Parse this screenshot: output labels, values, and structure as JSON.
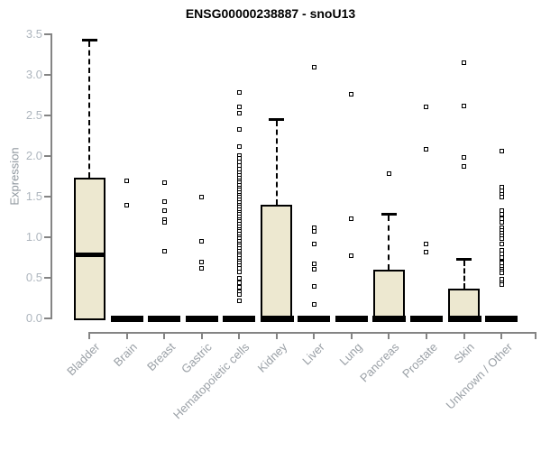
{
  "title": "ENSG00000238887 - snoU13",
  "y_axis": {
    "label": "Expression"
  },
  "colors": {
    "box_fill": "#EDE8D0",
    "box_stroke": "#000000",
    "axis_line": "#848484",
    "y_tick_label": "#AEB6BE",
    "x_tick_label": "#9AA0A6",
    "title": "#000000"
  },
  "chart_data": {
    "type": "boxplot",
    "title": "ENSG00000238887 - snoU13",
    "xlabel": "",
    "ylabel": "Expression",
    "ylim": [
      0,
      3.5
    ],
    "ytick_labels": [
      "0.0",
      "0.5",
      "1.0",
      "1.5",
      "2.0",
      "2.5",
      "3.0",
      "3.5"
    ],
    "grid": false,
    "legend": "none",
    "categories": [
      "Bladder",
      "Brain",
      "Breast",
      "Gastric",
      "Hematopoietic cells",
      "Kidney",
      "Liver",
      "Lung",
      "Pancreas",
      "Prostate",
      "Skin",
      "Unknown / Other"
    ],
    "series": [
      {
        "name": "Bladder",
        "q1": 0,
        "median": 0.79,
        "q3": 1.73,
        "whisker_low": 0,
        "whisker_high": 3.43,
        "outliers": []
      },
      {
        "name": "Brain",
        "q1": 0,
        "median": 0,
        "q3": 0,
        "whisker_low": 0,
        "whisker_high": 0,
        "outliers": [
          1.69,
          1.4
        ]
      },
      {
        "name": "Breast",
        "q1": 0,
        "median": 0,
        "q3": 0,
        "whisker_low": 0,
        "whisker_high": 0,
        "outliers": [
          1.67,
          1.44,
          1.33,
          1.22,
          1.18,
          0.83
        ]
      },
      {
        "name": "Gastric",
        "q1": 0,
        "median": 0,
        "q3": 0,
        "whisker_low": 0,
        "whisker_high": 0,
        "outliers": [
          1.49,
          0.95,
          0.7,
          0.62
        ]
      },
      {
        "name": "Hematopoietic cells",
        "q1": 0,
        "median": 0,
        "q3": 0,
        "whisker_low": 0,
        "whisker_high": 0,
        "outliers": [
          2.78,
          2.61,
          2.53,
          2.33,
          2.12,
          2.01,
          1.97,
          1.93,
          1.88,
          1.84,
          1.8,
          1.76,
          1.73,
          1.7,
          1.67,
          1.64,
          1.61,
          1.58,
          1.55,
          1.52,
          1.49,
          1.46,
          1.43,
          1.4,
          1.37,
          1.34,
          1.31,
          1.28,
          1.25,
          1.22,
          1.19,
          1.16,
          1.13,
          1.1,
          1.07,
          1.04,
          1.01,
          0.98,
          0.95,
          0.92,
          0.89,
          0.86,
          0.83,
          0.8,
          0.77,
          0.74,
          0.71,
          0.68,
          0.65,
          0.62,
          0.57,
          0.5,
          0.44,
          0.38,
          0.33,
          0.29,
          0.22
        ]
      },
      {
        "name": "Kidney",
        "q1": 0,
        "median": 0,
        "q3": 1.4,
        "whisker_low": 0,
        "whisker_high": 2.46,
        "outliers": []
      },
      {
        "name": "Liver",
        "q1": 0,
        "median": 0,
        "q3": 0,
        "whisker_low": 0,
        "whisker_high": 0,
        "outliers": [
          3.1,
          1.12,
          1.07,
          0.92,
          0.67,
          0.61,
          0.4,
          0.17
        ]
      },
      {
        "name": "Lung",
        "q1": 0,
        "median": 0,
        "q3": 0,
        "whisker_low": 0,
        "whisker_high": 0,
        "outliers": [
          2.76,
          1.23,
          0.77
        ]
      },
      {
        "name": "Pancreas",
        "q1": 0,
        "median": 0,
        "q3": 0.6,
        "whisker_low": 0,
        "whisker_high": 1.29,
        "outliers": [
          1.78
        ]
      },
      {
        "name": "Prostate",
        "q1": 0,
        "median": 0,
        "q3": 0,
        "whisker_low": 0,
        "whisker_high": 0,
        "outliers": [
          2.61,
          2.08,
          0.92,
          0.82
        ]
      },
      {
        "name": "Skin",
        "q1": 0,
        "median": 0,
        "q3": 0.37,
        "whisker_low": 0,
        "whisker_high": 0.73,
        "outliers": [
          3.15,
          2.62,
          1.98,
          1.87
        ]
      },
      {
        "name": "Unknown / Other",
        "q1": 0,
        "median": 0,
        "q3": 0,
        "whisker_low": 0,
        "whisker_high": 0,
        "outliers": [
          2.06,
          1.62,
          1.57,
          1.53,
          1.5,
          1.33,
          1.28,
          1.23,
          1.18,
          1.12,
          1.08,
          1.05,
          1.02,
          0.98,
          0.92,
          0.84,
          0.79,
          0.75,
          0.7,
          0.68,
          0.64,
          0.61,
          0.58,
          0.56,
          0.48,
          0.44,
          0.42
        ]
      }
    ]
  }
}
